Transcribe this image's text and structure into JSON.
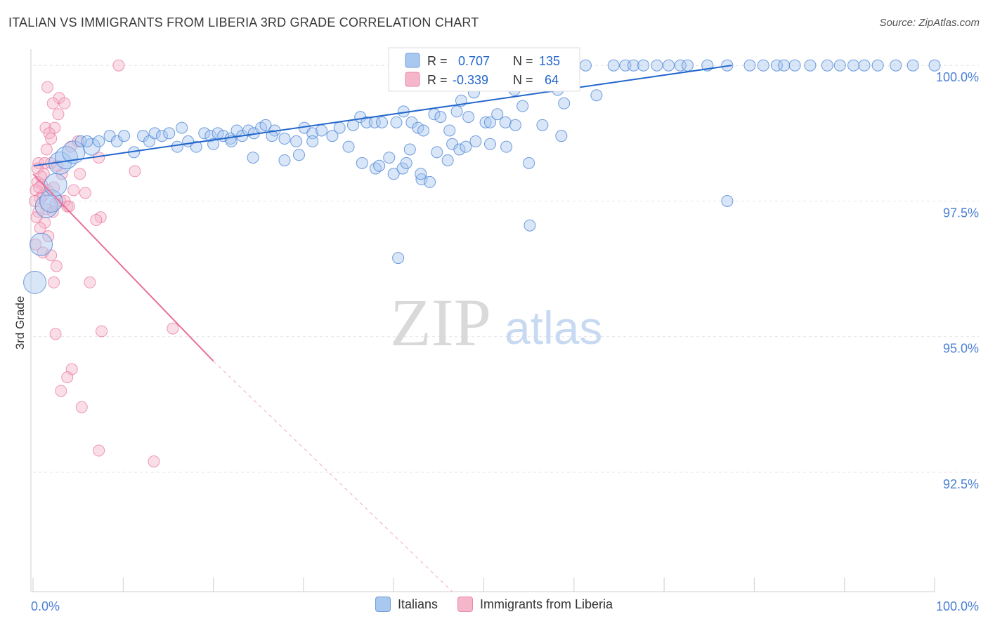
{
  "header": {
    "title": "ITALIAN VS IMMIGRANTS FROM LIBERIA 3RD GRADE CORRELATION CHART",
    "source": "Source: ZipAtlas.com"
  },
  "watermark": {
    "zip": "ZIP",
    "atlas": "atlas"
  },
  "legend": {
    "italians": "Italians",
    "liberia": "Immigrants from Liberia"
  },
  "stats": {
    "r_label": "R =",
    "n_label": "N =",
    "italians": {
      "r": "0.707",
      "n": "135"
    },
    "liberia": {
      "r": "-0.339",
      "n": "64"
    }
  },
  "colors": {
    "blue": "#2266cc",
    "blue_fill": "#a8c8f0",
    "pink": "#e8709a",
    "pink_fill": "#f5b6ca",
    "axis_text": "#4a7fd4"
  },
  "chart_data": {
    "type": "scatter",
    "title": "ITALIAN VS IMMIGRANTS FROM LIBERIA 3RD GRADE CORRELATION CHART",
    "xlabel": "",
    "ylabel": "3rd Grade",
    "xlim": [
      0,
      100
    ],
    "ylim": [
      90.3,
      100.3
    ],
    "x_tick_labels": [
      "0.0%",
      "100.0%"
    ],
    "y_ticks": [
      {
        "value": 100.0,
        "label": "100.0%"
      },
      {
        "value": 97.5,
        "label": "97.5%"
      },
      {
        "value": 95.0,
        "label": "95.0%"
      },
      {
        "value": 92.5,
        "label": "92.5%"
      }
    ],
    "series": [
      {
        "name": "Italians",
        "r": 0.707,
        "n": 135,
        "trend": {
          "x0": 0.1,
          "y0": 98.15,
          "x1": 77.5,
          "y1": 100.0
        },
        "points": [
          [
            0.2,
            96.0,
            2
          ],
          [
            0.9,
            96.7,
            2
          ],
          [
            1.5,
            97.4,
            2
          ],
          [
            2.0,
            97.5,
            2
          ],
          [
            2.5,
            97.8,
            2
          ],
          [
            3.0,
            98.2,
            2
          ],
          [
            3.7,
            98.3,
            2
          ],
          [
            4.5,
            98.4,
            2
          ],
          [
            6.5,
            98.5,
            1.5
          ],
          [
            5.3,
            98.6,
            1
          ],
          [
            6.0,
            98.6,
            1
          ],
          [
            7.3,
            98.6,
            1
          ],
          [
            8.5,
            98.7,
            1
          ],
          [
            9.3,
            98.6,
            1
          ],
          [
            10.1,
            98.7,
            1
          ],
          [
            11.2,
            98.4,
            1
          ],
          [
            12.2,
            98.7,
            1
          ],
          [
            12.9,
            98.6,
            1
          ],
          [
            13.5,
            98.75,
            1
          ],
          [
            14.3,
            98.7,
            1
          ],
          [
            15.1,
            98.75,
            1
          ],
          [
            16.0,
            98.5,
            1
          ],
          [
            16.5,
            98.85,
            1
          ],
          [
            17.2,
            98.6,
            1
          ],
          [
            18.1,
            98.5,
            1
          ],
          [
            19.0,
            98.75,
            1
          ],
          [
            19.7,
            98.7,
            1
          ],
          [
            20.5,
            98.75,
            1
          ],
          [
            21.1,
            98.7,
            1
          ],
          [
            21.9,
            98.65,
            1
          ],
          [
            22.6,
            98.8,
            1
          ],
          [
            23.2,
            98.7,
            1
          ],
          [
            23.9,
            98.8,
            1
          ],
          [
            24.5,
            98.75,
            1
          ],
          [
            25.3,
            98.85,
            1
          ],
          [
            25.8,
            98.9,
            1
          ],
          [
            26.8,
            98.8,
            1
          ],
          [
            27.9,
            98.65,
            1
          ],
          [
            29.2,
            98.6,
            1
          ],
          [
            30.1,
            98.85,
            1
          ],
          [
            31.0,
            98.75,
            1
          ],
          [
            32.0,
            98.8,
            1
          ],
          [
            33.2,
            98.7,
            1
          ],
          [
            34.0,
            98.85,
            1
          ],
          [
            35.5,
            98.9,
            1
          ],
          [
            36.3,
            99.05,
            1
          ],
          [
            37.0,
            98.95,
            1
          ],
          [
            37.9,
            98.95,
            1
          ],
          [
            38.7,
            98.95,
            1
          ],
          [
            40.3,
            98.95,
            1
          ],
          [
            41.1,
            99.15,
            1
          ],
          [
            42.0,
            98.95,
            1
          ],
          [
            42.7,
            98.85,
            1
          ],
          [
            43.3,
            98.8,
            1
          ],
          [
            44.5,
            99.1,
            1
          ],
          [
            45.2,
            99.05,
            1
          ],
          [
            46.2,
            98.8,
            1
          ],
          [
            47.0,
            99.15,
            1
          ],
          [
            47.5,
            99.35,
            1
          ],
          [
            48.3,
            99.05,
            1
          ],
          [
            48.9,
            99.5,
            1
          ],
          [
            50.2,
            98.95,
            1
          ],
          [
            51.5,
            99.1,
            1
          ],
          [
            52.4,
            98.95,
            1
          ],
          [
            53.4,
            99.55,
            1
          ],
          [
            54.3,
            99.25,
            1
          ],
          [
            56.5,
            98.9,
            1
          ],
          [
            58.2,
            99.55,
            1
          ],
          [
            58.9,
            99.3,
            1
          ],
          [
            60.0,
            100.0,
            1
          ],
          [
            61.3,
            100.0,
            1
          ],
          [
            62.5,
            99.45,
            1
          ],
          [
            64.4,
            100.0,
            1
          ],
          [
            65.7,
            100.0,
            1
          ],
          [
            66.6,
            100.0,
            1
          ],
          [
            67.7,
            100.0,
            1
          ],
          [
            69.2,
            100.0,
            1
          ],
          [
            70.5,
            100.0,
            1
          ],
          [
            71.8,
            100.0,
            1
          ],
          [
            72.6,
            100.0,
            1
          ],
          [
            74.8,
            100.0,
            1
          ],
          [
            77.0,
            100.0,
            1
          ],
          [
            79.5,
            100.0,
            1
          ],
          [
            81.0,
            100.0,
            1
          ],
          [
            82.5,
            100.0,
            1
          ],
          [
            83.3,
            100.0,
            1
          ],
          [
            84.5,
            100.0,
            1
          ],
          [
            86.2,
            100.0,
            1
          ],
          [
            88.1,
            100.0,
            1
          ],
          [
            89.5,
            100.0,
            1
          ],
          [
            91.0,
            100.0,
            1
          ],
          [
            92.2,
            100.0,
            1
          ],
          [
            93.7,
            100.0,
            1
          ],
          [
            95.7,
            100.0,
            1
          ],
          [
            97.6,
            100.0,
            1
          ],
          [
            100.0,
            100.0,
            1
          ],
          [
            40.0,
            98.0,
            1
          ],
          [
            41.0,
            98.1,
            1
          ],
          [
            43.1,
            97.9,
            1
          ],
          [
            36.5,
            98.2,
            1
          ],
          [
            38.0,
            98.1,
            1
          ],
          [
            39.5,
            98.3,
            1
          ],
          [
            41.8,
            98.45,
            1
          ],
          [
            24.4,
            98.3,
            1
          ],
          [
            27.9,
            98.25,
            1
          ],
          [
            29.5,
            98.35,
            1
          ],
          [
            46.5,
            98.55,
            1
          ],
          [
            47.3,
            98.45,
            1
          ],
          [
            49.1,
            98.6,
            1
          ],
          [
            50.7,
            98.55,
            1
          ],
          [
            41.4,
            98.2,
            1
          ],
          [
            38.4,
            98.15,
            1
          ],
          [
            35.0,
            98.5,
            1
          ],
          [
            31.0,
            98.6,
            1
          ],
          [
            26.5,
            98.7,
            1
          ],
          [
            22.0,
            98.6,
            1
          ],
          [
            20.0,
            98.55,
            1
          ],
          [
            48.0,
            98.5,
            1
          ],
          [
            50.7,
            98.95,
            1
          ],
          [
            53.5,
            98.9,
            1
          ],
          [
            55.0,
            98.2,
            1
          ],
          [
            58.6,
            98.7,
            1
          ],
          [
            52.5,
            98.5,
            1
          ],
          [
            44.0,
            97.85,
            1
          ],
          [
            40.5,
            96.45,
            1
          ],
          [
            55.1,
            97.05,
            1
          ],
          [
            77.0,
            97.5,
            1
          ],
          [
            43.0,
            98.0,
            1
          ],
          [
            44.8,
            98.4,
            1
          ],
          [
            46.0,
            98.25,
            1
          ]
        ]
      },
      {
        "name": "Immigrants from Liberia",
        "r": -0.339,
        "n": 64,
        "trend": {
          "x0": 0.0,
          "y0": 98.0,
          "x1": 20.0,
          "y1": 94.55,
          "dash_x1": 46.5,
          "dash_y1": 90.3
        },
        "points": [
          [
            9.5,
            100.0,
            1
          ],
          [
            1.6,
            99.6,
            1
          ],
          [
            2.9,
            99.4,
            1
          ],
          [
            2.2,
            99.3,
            1
          ],
          [
            3.5,
            99.3,
            1
          ],
          [
            2.8,
            99.1,
            1
          ],
          [
            1.4,
            98.85,
            1
          ],
          [
            2.4,
            98.85,
            1
          ],
          [
            1.8,
            98.75,
            1
          ],
          [
            2.0,
            98.65,
            1
          ],
          [
            4.2,
            98.5,
            1
          ],
          [
            1.5,
            98.45,
            1
          ],
          [
            7.3,
            98.3,
            1
          ],
          [
            0.6,
            98.2,
            1
          ],
          [
            1.3,
            98.2,
            1
          ],
          [
            2.0,
            98.2,
            1
          ],
          [
            11.3,
            98.05,
            1
          ],
          [
            5.2,
            98.0,
            1
          ],
          [
            0.5,
            97.85,
            1
          ],
          [
            1.0,
            97.8,
            1
          ],
          [
            1.6,
            97.7,
            1
          ],
          [
            2.3,
            97.75,
            1
          ],
          [
            0.3,
            97.7,
            1
          ],
          [
            1.1,
            97.6,
            1
          ],
          [
            0.8,
            97.55,
            1
          ],
          [
            3.0,
            97.5,
            1
          ],
          [
            2.5,
            97.45,
            1
          ],
          [
            4.5,
            97.7,
            1
          ],
          [
            5.8,
            97.65,
            1
          ],
          [
            0.2,
            97.5,
            1
          ],
          [
            1.5,
            97.35,
            1
          ],
          [
            0.6,
            97.3,
            1
          ],
          [
            2.2,
            97.3,
            1
          ],
          [
            3.8,
            97.4,
            1
          ],
          [
            0.4,
            97.2,
            1
          ],
          [
            1.3,
            97.1,
            1
          ],
          [
            7.5,
            97.2,
            1
          ],
          [
            7.0,
            97.15,
            1
          ],
          [
            0.8,
            97.0,
            1
          ],
          [
            1.7,
            96.85,
            1
          ],
          [
            0.3,
            96.7,
            1
          ],
          [
            1.1,
            96.55,
            1
          ],
          [
            2.0,
            96.5,
            1
          ],
          [
            2.6,
            96.3,
            1
          ],
          [
            6.3,
            96.0,
            1
          ],
          [
            2.3,
            96.0,
            1
          ],
          [
            7.6,
            95.1,
            1
          ],
          [
            15.5,
            95.15,
            1
          ],
          [
            2.5,
            95.05,
            1
          ],
          [
            4.3,
            94.4,
            1
          ],
          [
            3.8,
            94.25,
            1
          ],
          [
            3.1,
            94.0,
            1
          ],
          [
            5.4,
            93.7,
            1
          ],
          [
            7.3,
            92.9,
            1
          ],
          [
            13.4,
            92.7,
            1
          ],
          [
            3.5,
            97.5,
            1
          ],
          [
            4.0,
            97.4,
            1
          ],
          [
            0.5,
            98.1,
            1
          ],
          [
            1.2,
            98.0,
            1
          ],
          [
            0.9,
            97.95,
            1
          ],
          [
            3.2,
            98.0,
            1
          ],
          [
            2.7,
            98.15,
            1
          ],
          [
            0.7,
            97.75,
            1
          ],
          [
            5.0,
            98.6,
            1
          ]
        ]
      }
    ]
  }
}
